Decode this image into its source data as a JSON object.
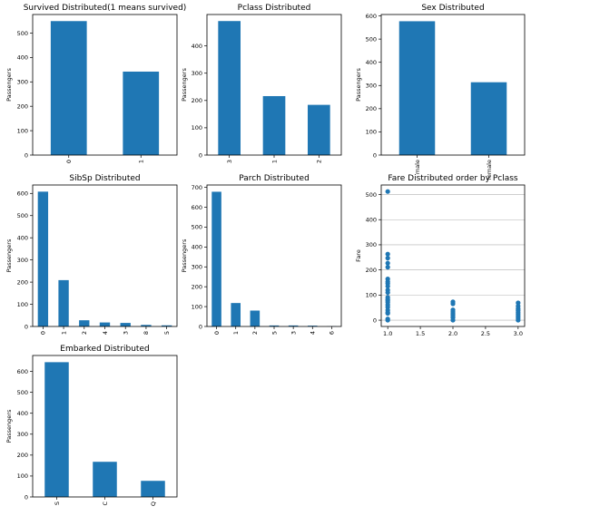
{
  "chart_data": [
    {
      "type": "bar",
      "title": "Survived Distributed(1 means survived)",
      "ylabel": "Passengers",
      "categories": [
        "0",
        "1"
      ],
      "values": [
        549,
        342
      ],
      "ylim": [
        0,
        576
      ],
      "yticks": [
        0,
        100,
        200,
        300,
        400,
        500
      ],
      "xtick_rotation": 90
    },
    {
      "type": "bar",
      "title": "Pclass Distributed",
      "ylabel": "Passengers",
      "categories": [
        "3",
        "1",
        "2"
      ],
      "values": [
        491,
        216,
        184
      ],
      "ylim": [
        0,
        515
      ],
      "yticks": [
        0,
        100,
        200,
        300,
        400
      ],
      "xtick_rotation": 90
    },
    {
      "type": "bar",
      "title": "Sex Distributed",
      "ylabel": "Passengers",
      "categories": [
        "male",
        "female"
      ],
      "values": [
        577,
        314
      ],
      "ylim": [
        0,
        606
      ],
      "yticks": [
        0,
        100,
        200,
        300,
        400,
        500,
        600
      ],
      "xtick_rotation": 90
    },
    {
      "type": "bar",
      "title": "SibSp Distributed",
      "ylabel": "Passengers",
      "categories": [
        "0",
        "1",
        "2",
        "4",
        "3",
        "8",
        "5"
      ],
      "values": [
        608,
        209,
        28,
        18,
        16,
        7,
        5
      ],
      "ylim": [
        0,
        638
      ],
      "yticks": [
        0,
        100,
        200,
        300,
        400,
        500,
        600
      ],
      "xtick_rotation": 90
    },
    {
      "type": "bar",
      "title": "Parch Distributed",
      "ylabel": "Passengers",
      "categories": [
        "0",
        "1",
        "2",
        "5",
        "3",
        "4",
        "6"
      ],
      "values": [
        678,
        118,
        80,
        5,
        5,
        4,
        1
      ],
      "ylim": [
        0,
        712
      ],
      "yticks": [
        0,
        100,
        200,
        300,
        400,
        500,
        600,
        700
      ],
      "xtick_rotation": 90
    },
    {
      "type": "scatter",
      "title": "Fare Distributed order by Pclass",
      "ylabel": "Fare",
      "xlim": [
        0.9,
        3.1
      ],
      "ylim": [
        -25,
        538
      ],
      "xticks": [
        1.0,
        1.5,
        2.0,
        2.5,
        3.0
      ],
      "xtick_labels": [
        "1.0",
        "1.5",
        "2.0",
        "2.5",
        "3.0"
      ],
      "yticks": [
        0,
        100,
        200,
        300,
        400,
        500
      ],
      "grid": "y",
      "points": [
        {
          "x": 1.0,
          "y": 512
        },
        {
          "x": 1.0,
          "y": 263
        },
        {
          "x": 1.0,
          "y": 247
        },
        {
          "x": 1.0,
          "y": 227
        },
        {
          "x": 1.0,
          "y": 211
        },
        {
          "x": 1.0,
          "y": 164
        },
        {
          "x": 1.0,
          "y": 153
        },
        {
          "x": 1.0,
          "y": 146
        },
        {
          "x": 1.0,
          "y": 135
        },
        {
          "x": 1.0,
          "y": 120
        },
        {
          "x": 1.0,
          "y": 110
        },
        {
          "x": 1.0,
          "y": 91
        },
        {
          "x": 1.0,
          "y": 83
        },
        {
          "x": 1.0,
          "y": 78
        },
        {
          "x": 1.0,
          "y": 71
        },
        {
          "x": 1.0,
          "y": 61
        },
        {
          "x": 1.0,
          "y": 52
        },
        {
          "x": 1.0,
          "y": 40
        },
        {
          "x": 1.0,
          "y": 31
        },
        {
          "x": 1.0,
          "y": 27
        },
        {
          "x": 1.0,
          "y": 5
        },
        {
          "x": 1.0,
          "y": 0
        },
        {
          "x": 2.0,
          "y": 73
        },
        {
          "x": 2.0,
          "y": 65
        },
        {
          "x": 2.0,
          "y": 41
        },
        {
          "x": 2.0,
          "y": 33
        },
        {
          "x": 2.0,
          "y": 26
        },
        {
          "x": 2.0,
          "y": 21
        },
        {
          "x": 2.0,
          "y": 13
        },
        {
          "x": 2.0,
          "y": 10
        },
        {
          "x": 2.0,
          "y": 0
        },
        {
          "x": 3.0,
          "y": 69
        },
        {
          "x": 3.0,
          "y": 56
        },
        {
          "x": 3.0,
          "y": 46
        },
        {
          "x": 3.0,
          "y": 39
        },
        {
          "x": 3.0,
          "y": 31
        },
        {
          "x": 3.0,
          "y": 24
        },
        {
          "x": 3.0,
          "y": 16
        },
        {
          "x": 3.0,
          "y": 8
        },
        {
          "x": 3.0,
          "y": 0
        }
      ]
    },
    {
      "type": "bar",
      "title": "Embarked Distributed",
      "ylabel": "Passengers",
      "categories": [
        "S",
        "C",
        "Q"
      ],
      "values": [
        644,
        168,
        77
      ],
      "ylim": [
        0,
        676
      ],
      "yticks": [
        0,
        100,
        200,
        300,
        400,
        500,
        600
      ],
      "xtick_rotation": 90
    }
  ],
  "style": {
    "bar_color": "#1f77b4",
    "point_color": "#1f77b4"
  }
}
